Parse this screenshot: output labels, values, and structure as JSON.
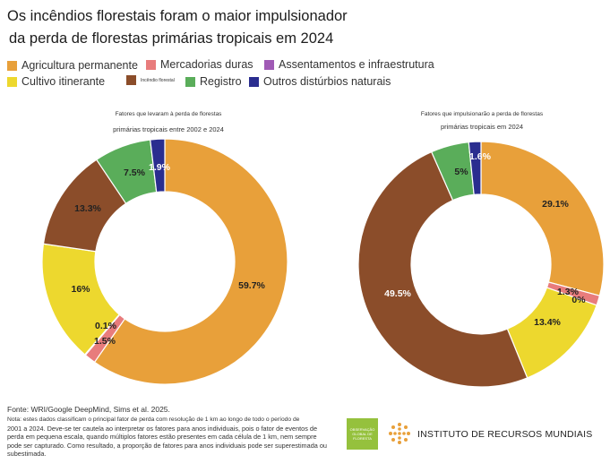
{
  "title_line1": "Os incêndios florestais foram o maior impulsionador",
  "title_line2": "da perda de florestas primárias tropicais em 2024",
  "legend": [
    {
      "label": "Agricultura permanente",
      "color": "#e8a03a"
    },
    {
      "label": "Mercadorias duras",
      "color": "#e87c7c"
    },
    {
      "label": "Assentamentos e infraestrutura",
      "color": "#a05ab5"
    },
    {
      "label": "Cultivo itinerante",
      "color": "#edd82e"
    },
    {
      "label": "Incêndio florestal",
      "color": "#8b4d2a"
    },
    {
      "label": "Registro",
      "color": "#5aad5a"
    },
    {
      "label": "Outros distúrbios naturais",
      "color": "#2a2d8f"
    }
  ],
  "chart_data": [
    {
      "type": "pie",
      "subtitle_line1": "Fatores que levaram à perda de florestas",
      "subtitle_line2": "primárias tropicais entre 2002 e 2024",
      "slices": [
        {
          "name": "Agricultura permanente",
          "value": 59.7,
          "label": "59.7%",
          "color": "#e8a03a"
        },
        {
          "name": "Mercadorias duras",
          "value": 1.5,
          "label": "1.5%",
          "color": "#e87c7c"
        },
        {
          "name": "Assentamentos e infraestrutura",
          "value": 0.1,
          "label": "0.1%",
          "color": "#a05ab5"
        },
        {
          "name": "Cultivo itinerante",
          "value": 16,
          "label": "16%",
          "color": "#edd82e"
        },
        {
          "name": "Incêndio florestal",
          "value": 13.3,
          "label": "13.3%",
          "color": "#8b4d2a"
        },
        {
          "name": "Registro",
          "value": 7.5,
          "label": "7.5%",
          "color": "#5aad5a"
        },
        {
          "name": "Outros distúrbios naturais",
          "value": 1.9,
          "label": "1.9%",
          "color": "#2a2d8f"
        }
      ]
    },
    {
      "type": "pie",
      "subtitle_line1": "Fatores que impulsionarão a perda de florestas",
      "subtitle_line2": "primárias tropicais em 2024",
      "slices": [
        {
          "name": "Agricultura permanente",
          "value": 29.1,
          "label": "29.1%",
          "color": "#e8a03a"
        },
        {
          "name": "Mercadorias duras",
          "value": 1.3,
          "label": "1.3%",
          "color": "#e87c7c"
        },
        {
          "name": "Assentamentos e infraestrutura",
          "value": 0,
          "label": "0%",
          "color": "#a05ab5"
        },
        {
          "name": "Cultivo itinerante",
          "value": 13.4,
          "label": "13.4%",
          "color": "#edd82e"
        },
        {
          "name": "Incêndio florestal",
          "value": 49.5,
          "label": "49.5%",
          "color": "#8b4d2a"
        },
        {
          "name": "Registro",
          "value": 5,
          "label": "5%",
          "color": "#5aad5a"
        },
        {
          "name": "Outros distúrbios naturais",
          "value": 1.6,
          "label": "1.6%",
          "color": "#2a2d8f"
        }
      ]
    }
  ],
  "source": "Fonte: WRI/Google DeepMind, Sims et al. 2025.",
  "note_line1": "Nota: estes dados classificam o principal fator de perda com resolução de 1 km ao longo de todo o período de",
  "note_rest": "2001 a 2024. Deve-se ter cautela ao interpretar os fatores para anos individuais, pois o fator de eventos de perda em pequena escala, quando múltiplos fatores estão presentes em cada célula de 1 km, nem sempre pode ser capturado. Como resultado, a proporção de fatores para anos individuais pode ser superestimada ou subestimada.",
  "gfw_logo_text": "OBSERVAÇÃO GLOBAL DE FLORESTA",
  "wri_name": "INSTITUTO DE RECURSOS MUNDIAIS"
}
